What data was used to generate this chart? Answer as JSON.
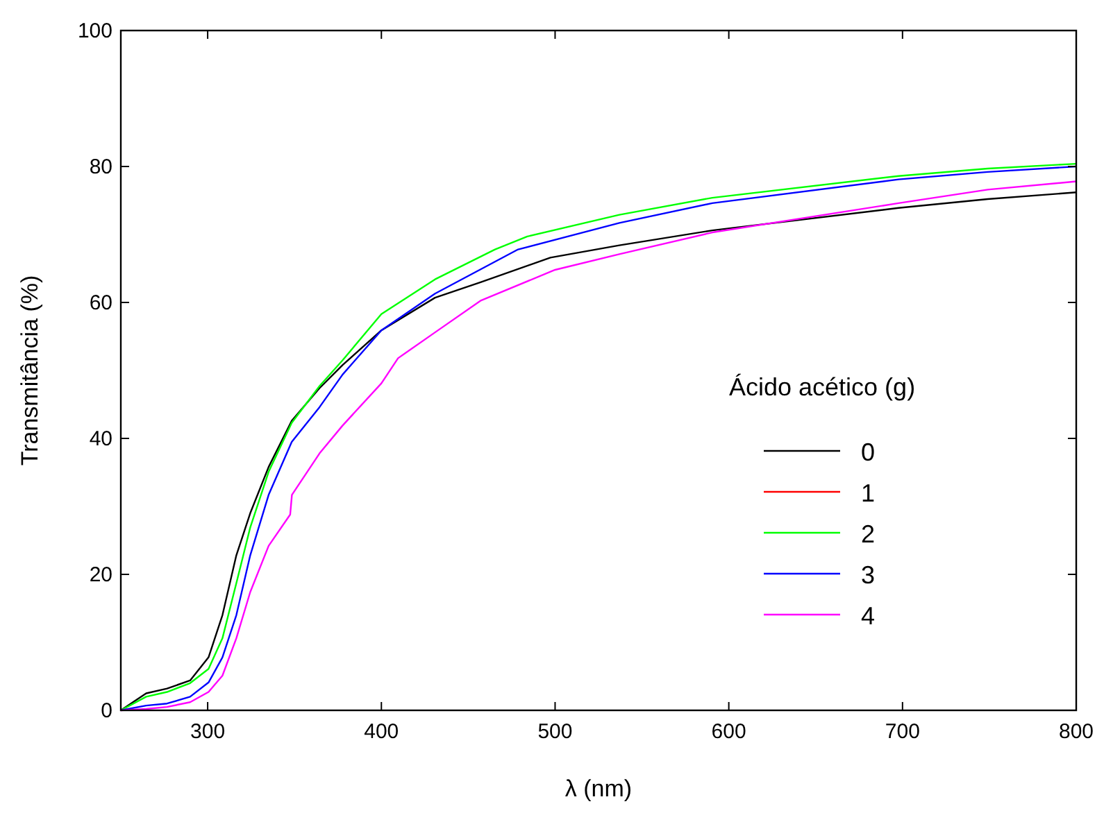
{
  "chart_data": {
    "type": "line",
    "xlabel": "λ (nm)",
    "ylabel": "Transmitância (%)",
    "legend_title": "Ácido acético (g)",
    "legend": "right",
    "grid": false,
    "line_style": "solid",
    "xlim": [
      250,
      800
    ],
    "xticks": [
      300,
      400,
      500,
      600,
      700,
      800
    ],
    "ylim": [
      0,
      100
    ],
    "yticks": [
      0,
      20,
      40,
      60,
      80,
      100
    ],
    "series": [
      {
        "name": "0",
        "color": "#000000",
        "x": [
          250,
          264.6,
          276.6,
          289.9,
          300.5,
          308.5,
          316.5,
          324.5,
          335.1,
          348.4,
          364.4,
          377.7,
          400,
          430.9,
          457.4,
          497.3,
          537,
          590.5,
          697.7,
          749,
          800
        ],
        "values": [
          0,
          2.5,
          3.2,
          4.4,
          7.8,
          14,
          22.8,
          29,
          35.8,
          42.6,
          47.4,
          50.8,
          55.9,
          60.7,
          63,
          66.6,
          68.4,
          70.6,
          73.9,
          75.2,
          76.2
        ]
      },
      {
        "name": "1",
        "color": "#ff0000"
      },
      {
        "name": "2",
        "color": "#00ff00",
        "x": [
          250,
          264.6,
          276.6,
          289.9,
          300.5,
          308.5,
          316.5,
          324.5,
          335.1,
          348.4,
          364.4,
          377.7,
          400,
          430.9,
          465.4,
          484,
          537,
          590.5,
          697.7,
          749,
          800
        ],
        "values": [
          0,
          2,
          2.7,
          4,
          6.1,
          10.6,
          18.7,
          26.9,
          35.1,
          42.3,
          47.7,
          51.5,
          58.3,
          63.4,
          67.8,
          69.7,
          72.9,
          75.4,
          78.6,
          79.7,
          80.4
        ]
      },
      {
        "name": "3",
        "color": "#0000ff",
        "x": [
          250,
          264.6,
          276.6,
          289.9,
          300.5,
          308.5,
          316.5,
          324.5,
          335.1,
          348.4,
          364.4,
          377.7,
          400,
          430.9,
          478.7,
          537,
          590.5,
          697.7,
          749,
          800
        ],
        "values": [
          0,
          0.7,
          1,
          2,
          4.1,
          7.8,
          14,
          22.8,
          31.7,
          39.5,
          44.6,
          49.4,
          55.9,
          61.3,
          67.8,
          71.7,
          74.6,
          78.1,
          79.2,
          80
        ]
      },
      {
        "name": "4",
        "color": "#ff00ff",
        "x": [
          250,
          264.6,
          276.6,
          289.9,
          300.5,
          308.5,
          316.5,
          324.5,
          335.1,
          347.5,
          348.5,
          364.4,
          377.7,
          400,
          409.6,
          430.9,
          457.4,
          500,
          537,
          590.5,
          697.7,
          749,
          800
        ],
        "values": [
          0,
          0.2,
          0.5,
          1.2,
          2.7,
          5.1,
          10.6,
          17.4,
          24.2,
          28.8,
          31.7,
          37.8,
          41.9,
          48.1,
          51.8,
          55.6,
          60.3,
          64.8,
          67.1,
          70.3,
          74.6,
          76.6,
          77.8
        ]
      }
    ]
  }
}
